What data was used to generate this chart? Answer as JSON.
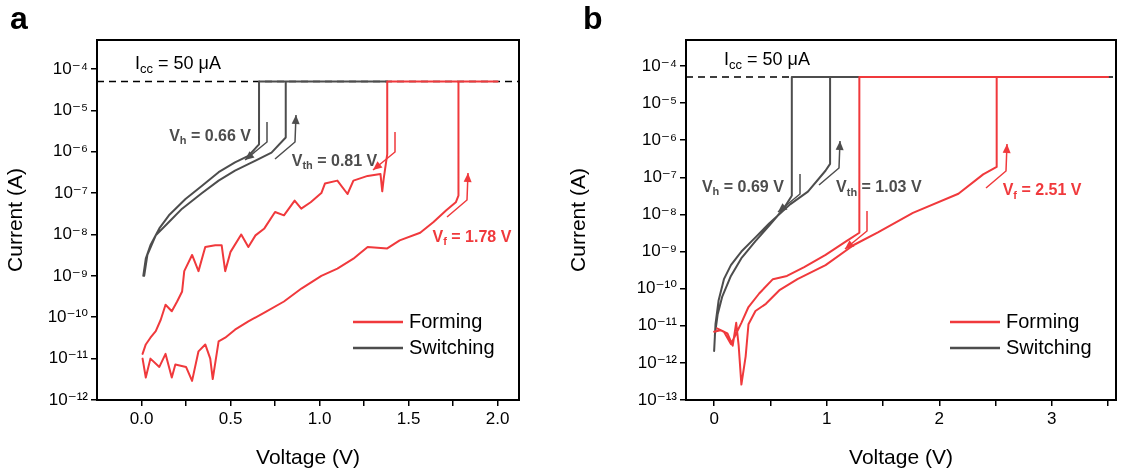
{
  "chart_data": [
    {
      "type": "line",
      "title": "a",
      "xlabel": "Voltage (V)",
      "ylabel": "Current (A)",
      "log": "y",
      "grid": false,
      "legend": "bottom right",
      "xlim": [
        -0.25,
        2.12
      ],
      "ylim": [
        1e-12,
        0.0005
      ],
      "xticks": [
        {
          "value": 0,
          "label": "0.0"
        },
        {
          "value": 0.25,
          "label": null
        },
        0.5,
        {
          "value": 0.75,
          "label": null
        },
        {
          "value": 1,
          "label": "1.0"
        },
        {
          "value": 1.25,
          "label": null
        },
        1.5,
        {
          "value": 1.75,
          "label": null
        },
        {
          "value": 2,
          "label": "2.0"
        }
      ],
      "yticks": [
        {
          "value": 1e-12,
          "label": "10⁻¹²"
        },
        {
          "value": 1e-11,
          "label": "10⁻¹¹"
        },
        {
          "value": 1e-10,
          "label": "10⁻¹⁰"
        },
        {
          "value": 1e-09,
          "label": "10⁻⁹"
        },
        {
          "value": 1e-08,
          "label": "10⁻⁸"
        },
        {
          "value": 1e-07,
          "label": "10⁻⁷"
        },
        {
          "value": 1e-06,
          "label": "10⁻⁶"
        },
        {
          "value": 1e-05,
          "label": "10⁻⁵"
        },
        {
          "value": 0.0001,
          "label": "10⁻⁴"
        }
      ],
      "ref_lines": [
        {
          "axis": "y",
          "value": 5e-05,
          "label": "I$_{cc}$ = 50 μA",
          "color": "#000000",
          "line_style": "dashed"
        }
      ],
      "annotations": [
        {
          "text": "V$_{h}$ = 0.66 V",
          "x": 0.66,
          "y": 1.5e-06
        },
        {
          "text": "V$_{th}$ = 0.81 V",
          "x": 0.81,
          "y": 2.2e-06
        },
        {
          "text": "V$_{f}$ = 1.78 V",
          "x": 1.78,
          "y": 8.7e-08
        }
      ],
      "series": [
        {
          "name": "Forming",
          "color": "#f0393c",
          "x": [
            0.006,
            0.024,
            0.05,
            0.1,
            0.135,
            0.17,
            0.19,
            0.25,
            0.284,
            0.32,
            0.358,
            0.386,
            0.4,
            0.433,
            0.47,
            0.525,
            0.6,
            0.69,
            0.8,
            0.9,
            1.01,
            1.1,
            1.19,
            1.27,
            1.38,
            1.45,
            1.565,
            1.64,
            1.71,
            1.765,
            1.78,
            1.78,
            2.0,
            1.38,
            1.38,
            1.36,
            1.352,
            1.342,
            1.27,
            1.19,
            1.157,
            1.1,
            1.03,
            1.01,
            0.95,
            0.897,
            0.86,
            0.8,
            0.75,
            0.69,
            0.64,
            0.6,
            0.56,
            0.5,
            0.47,
            0.45,
            0.414,
            0.358,
            0.32,
            0.284,
            0.24,
            0.228,
            0.2,
            0.17,
            0.135,
            0.108,
            0.08,
            0.05,
            0.024,
            0.006
          ],
          "values": [
            1e-11,
            3.5e-12,
            1e-11,
            6.3e-12,
            1.3e-11,
            3.5e-12,
            7.2e-12,
            6.3e-12,
            2.9e-12,
            1.5e-11,
            2.2e-11,
            1e-11,
            3.2e-12,
            2.6e-11,
            3.2e-11,
            5e-11,
            7.9e-11,
            1.3e-10,
            2.4e-10,
            5e-10,
            1e-09,
            1.5e-09,
            2.6e-09,
            5e-09,
            4.6e-09,
            7.2e-09,
            1.1e-08,
            2e-08,
            3.8e-08,
            6e-08,
            8.7e-08,
            5e-05,
            5e-05,
            5e-05,
            8.7e-07,
            2.2e-07,
            1.1e-07,
            2.9e-07,
            2.6e-07,
            2e-07,
            9.5e-08,
            2e-07,
            1.7e-07,
            1e-07,
            6e-08,
            4.2e-08,
            6.6e-08,
            2.9e-08,
            3.5e-08,
            1.4e-08,
            9.5e-09,
            5e-09,
            1e-08,
            3.8e-09,
            1.3e-09,
            5.5e-09,
            5.5e-09,
            5e-09,
            1.3e-09,
            3.2e-09,
            1.3e-09,
            4.2e-10,
            2.4e-10,
            1.4e-10,
            2e-10,
            8.7e-11,
            4.6e-11,
            3.2e-11,
            2.2e-11,
            1.3e-11
          ]
        },
        {
          "name": "Switching",
          "color": "#4d4d4d",
          "x": [
            0.015,
            0.033,
            0.08,
            0.154,
            0.228,
            0.34,
            0.433,
            0.525,
            0.62,
            0.73,
            0.81,
            0.81,
            1.38,
            0.66,
            0.66,
            0.6,
            0.525,
            0.433,
            0.34,
            0.247,
            0.154,
            0.1,
            0.05,
            0.024,
            0.01
          ],
          "values": [
            1e-09,
            3.2e-09,
            9.5e-09,
            2e-08,
            4.2e-08,
            1e-07,
            2e-07,
            3.5e-07,
            5.5e-07,
            9.5e-07,
            2.2e-06,
            5e-05,
            5e-05,
            5e-05,
            1.5e-06,
            7.9e-07,
            5.5e-07,
            3.2e-07,
            1.5e-07,
            7.2e-08,
            2.9e-08,
            1.4e-08,
            5.5e-09,
            2.6e-09,
            1e-09
          ]
        }
      ]
    },
    {
      "type": "line",
      "title": "b",
      "xlabel": "Voltage (V)",
      "ylabel": "Current (A)",
      "log": "y",
      "grid": false,
      "legend": "bottom right",
      "xlim": [
        -0.25,
        3.57
      ],
      "ylim": [
        1e-13,
        0.0005
      ],
      "xticks": [
        0,
        {
          "value": 0.5,
          "label": null
        },
        1,
        {
          "value": 1.5,
          "label": null
        },
        2,
        {
          "value": 2.5,
          "label": null
        },
        3,
        {
          "value": 3.5,
          "label": null
        }
      ],
      "yticks": [
        {
          "value": 1e-13,
          "label": "10⁻¹³"
        },
        {
          "value": 1e-12,
          "label": "10⁻¹²"
        },
        {
          "value": 1e-11,
          "label": "10⁻¹¹"
        },
        {
          "value": 1e-10,
          "label": "10⁻¹⁰"
        },
        {
          "value": 1e-09,
          "label": "10⁻⁹"
        },
        {
          "value": 1e-08,
          "label": "10⁻⁸"
        },
        {
          "value": 1e-07,
          "label": "10⁻⁷"
        },
        {
          "value": 1e-06,
          "label": "10⁻⁶"
        },
        {
          "value": 1e-05,
          "label": "10⁻⁵"
        },
        {
          "value": 0.0001,
          "label": "10⁻⁴"
        }
      ],
      "ref_lines": [
        {
          "axis": "y",
          "value": 5e-05,
          "label": "I$_{cc}$ = 50 μA",
          "color": "#000000",
          "line_style": "dashed"
        }
      ],
      "annotations": [
        {
          "text": "V$_{h}$ = 0.69 V",
          "x": 0.69,
          "y": 3.2e-08
        },
        {
          "text": "V$_{th}$ = 1.03 V",
          "x": 1.03,
          "y": 2.3e-07
        },
        {
          "text": "V$_{f}$ = 2.51 V",
          "x": 2.51,
          "y": 1.9e-07
        }
      ],
      "series": [
        {
          "name": "Forming",
          "color": "#f0393c",
          "x": [
            0,
            0.056,
            0.118,
            0.165,
            0.196,
            0.218,
            0.242,
            0.28,
            0.305,
            0.367,
            0.46,
            0.584,
            0.74,
            0.99,
            1.24,
            1.455,
            1.766,
            2.17,
            2.39,
            2.51,
            2.51,
            3.5,
            1.29,
            1.29,
            1.175,
            0.99,
            0.8,
            0.647,
            0.522,
            0.4,
            0.305,
            0.242,
            0.196,
            0.149,
            0.087,
            0.025
          ],
          "values": [
            6.9e-12,
            7.6e-12,
            6.2e-12,
            2.9e-12,
            1.2e-11,
            2.9e-12,
            2.6e-13,
            1.5e-12,
            1.1e-11,
            2.5e-11,
            3.9e-11,
            9.3e-11,
            1.8e-10,
            4.3e-10,
            1.5e-09,
            3.3e-09,
            1.1e-08,
            3.6e-08,
            1.2e-07,
            1.9e-07,
            5e-05,
            5e-05,
            5e-05,
            3.2e-09,
            1.9e-09,
            8.1e-10,
            3.8e-10,
            2.2e-10,
            1.8e-10,
            7.4e-11,
            3.2e-11,
            1.2e-11,
            6.2e-12,
            3.2e-12,
            6.9e-12,
            8.5e-12
          ]
        },
        {
          "name": "Switching",
          "color": "#4d4d4d",
          "x": [
            0,
            0.012,
            0.04,
            0.087,
            0.149,
            0.242,
            0.367,
            0.491,
            0.678,
            0.833,
            0.989,
            1.03,
            1.03,
            1.29,
            0.69,
            0.69,
            0.615,
            0.491,
            0.367,
            0.242,
            0.149,
            0.071,
            0.031,
            0.006
          ],
          "values": [
            2.1e-12,
            1.1e-11,
            4.9e-11,
            1.8e-10,
            4.3e-10,
            1e-09,
            2.4e-09,
            5.8e-09,
            1.9e-08,
            4.1e-08,
            1.5e-07,
            2.3e-07,
            5e-05,
            5e-05,
            5e-05,
            3.2e-08,
            1.4e-08,
            5.1e-09,
            1.9e-09,
            6.6e-10,
            2.2e-10,
            6e-11,
            2e-11,
            5.5e-12
          ]
        }
      ]
    }
  ]
}
